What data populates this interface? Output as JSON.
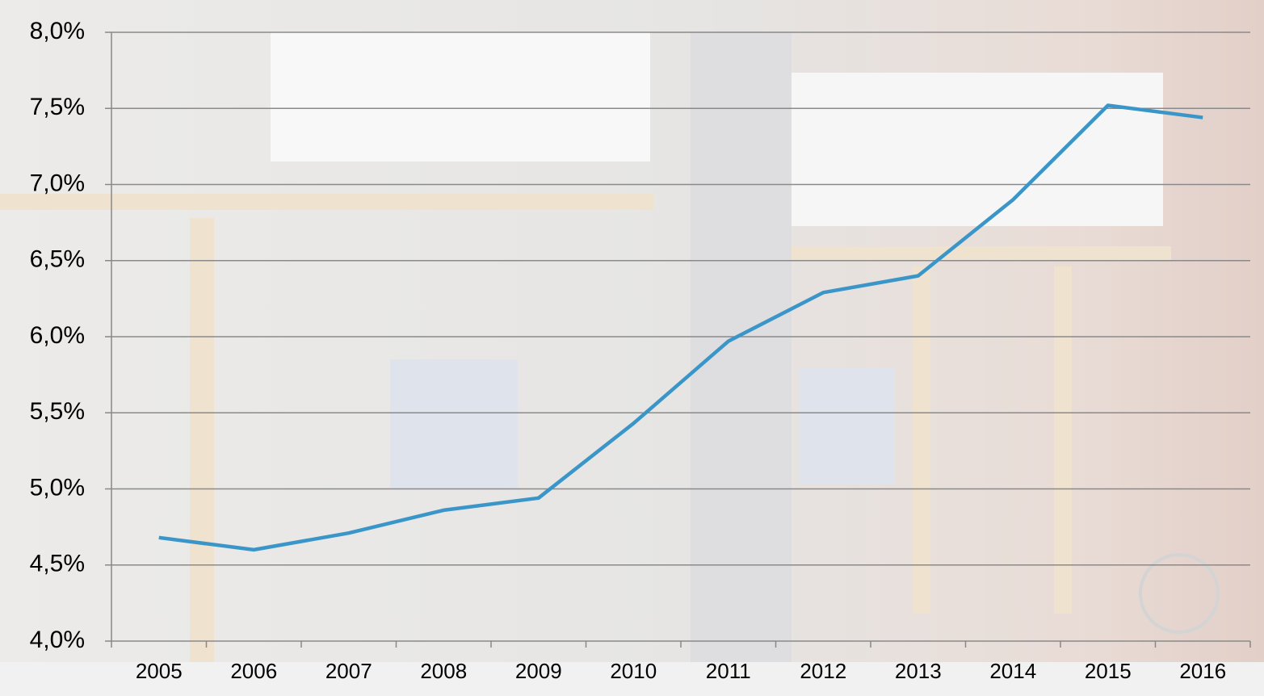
{
  "chart_data": {
    "type": "line",
    "categories": [
      "2005",
      "2006",
      "2007",
      "2008",
      "2009",
      "2010",
      "2011",
      "2012",
      "2013",
      "2014",
      "2015",
      "2016"
    ],
    "values": [
      4.68,
      4.6,
      4.71,
      4.86,
      4.94,
      5.43,
      5.97,
      6.29,
      6.4,
      6.9,
      7.52,
      7.44
    ],
    "color": "#3a96c8",
    "ylim": [
      4.0,
      8.0
    ],
    "yticks": [
      {
        "value": 4.0,
        "label": "4,0%"
      },
      {
        "value": 4.5,
        "label": "4,5%"
      },
      {
        "value": 5.0,
        "label": "5,0%"
      },
      {
        "value": 5.5,
        "label": "5,5%"
      },
      {
        "value": 6.0,
        "label": "6,0%"
      },
      {
        "value": 6.5,
        "label": "6,5%"
      },
      {
        "value": 7.0,
        "label": "7,0%"
      },
      {
        "value": 7.5,
        "label": "7,5%"
      },
      {
        "value": 8.0,
        "label": "8,0%"
      }
    ],
    "grid": true
  }
}
